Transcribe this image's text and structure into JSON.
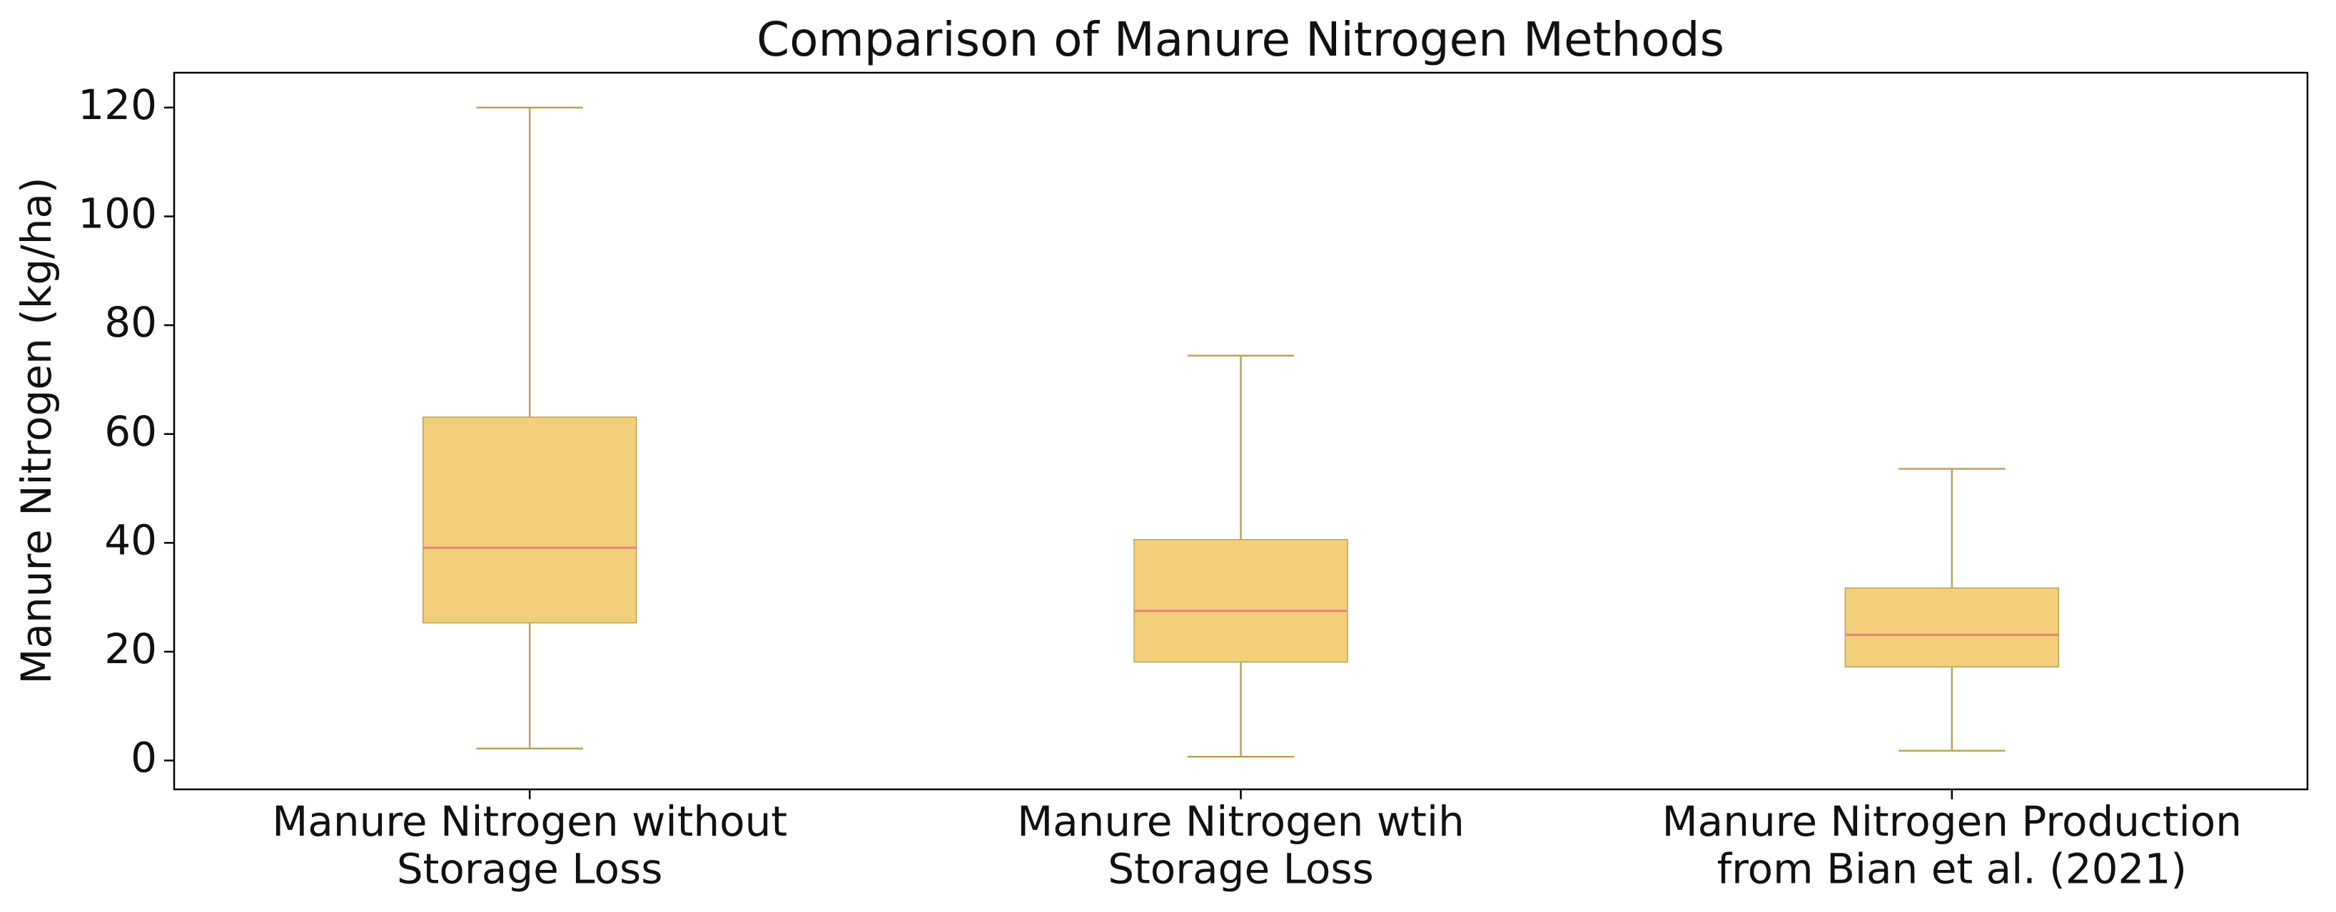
{
  "chart_data": {
    "type": "box",
    "title": "Comparison of Manure Nitrogen Methods",
    "y_label": "Manure Nitrogen (kg/ha)",
    "categories": [
      "Manure Nitrogen without\nStorage Loss",
      "Manure Nitrogen wtih\nStorage Loss",
      "Manure Nitrogen Production\nfrom Bian et al. (2021)"
    ],
    "boxes": [
      {
        "low": 2.2,
        "q1": 25.3,
        "median": 39.1,
        "q3": 63.1,
        "high": 120
      },
      {
        "low": 0.7,
        "q1": 18.1,
        "median": 27.5,
        "q3": 40.6,
        "high": 74.4
      },
      {
        "low": 1.8,
        "q1": 17.2,
        "median": 23.1,
        "q3": 31.7,
        "high": 53.6
      }
    ],
    "box_color": "#f4cf7b",
    "edge_color": "#b8a35a",
    "median_color": "#e8807a",
    "ylim": [
      -5.3,
      126.4
    ],
    "yticks": [
      0,
      20,
      40,
      60,
      80,
      100,
      120
    ]
  }
}
